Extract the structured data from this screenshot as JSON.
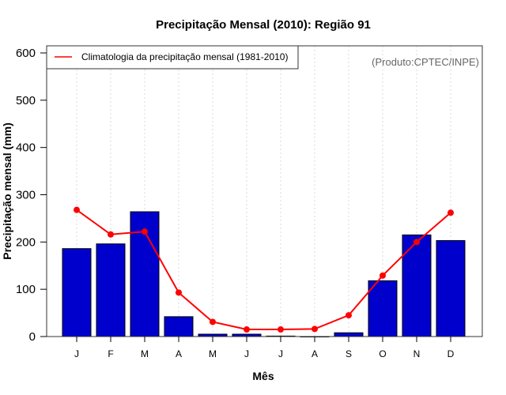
{
  "chart_data": {
    "type": "bar",
    "title": "Precipitação Mensal (2010): Região 91",
    "xlabel": "Mês",
    "ylabel": "Precipitação mensal (mm)",
    "ylim": [
      0,
      600
    ],
    "yticks": [
      "0",
      "100",
      "200",
      "300",
      "400",
      "500",
      "600"
    ],
    "categories": [
      "J",
      "F",
      "M",
      "A",
      "M",
      "J",
      "J",
      "A",
      "S",
      "O",
      "N",
      "D"
    ],
    "grid": "vertical dotted",
    "legend_position": "top-left",
    "credit": "(Produto:CPTEC/INPE)",
    "series": [
      {
        "name": "Precipitação mensal 2010",
        "type": "bar",
        "color": "#0000CD",
        "values": [
          186,
          196,
          264,
          42,
          5,
          5,
          1,
          0,
          8,
          118,
          215,
          203
        ]
      },
      {
        "name": "Climatologia da precipitação mensal (1981-2010)",
        "type": "line",
        "color": "#FF0000",
        "values": [
          268,
          216,
          222,
          93,
          31,
          15,
          15,
          16,
          45,
          129,
          200,
          262
        ]
      }
    ]
  }
}
